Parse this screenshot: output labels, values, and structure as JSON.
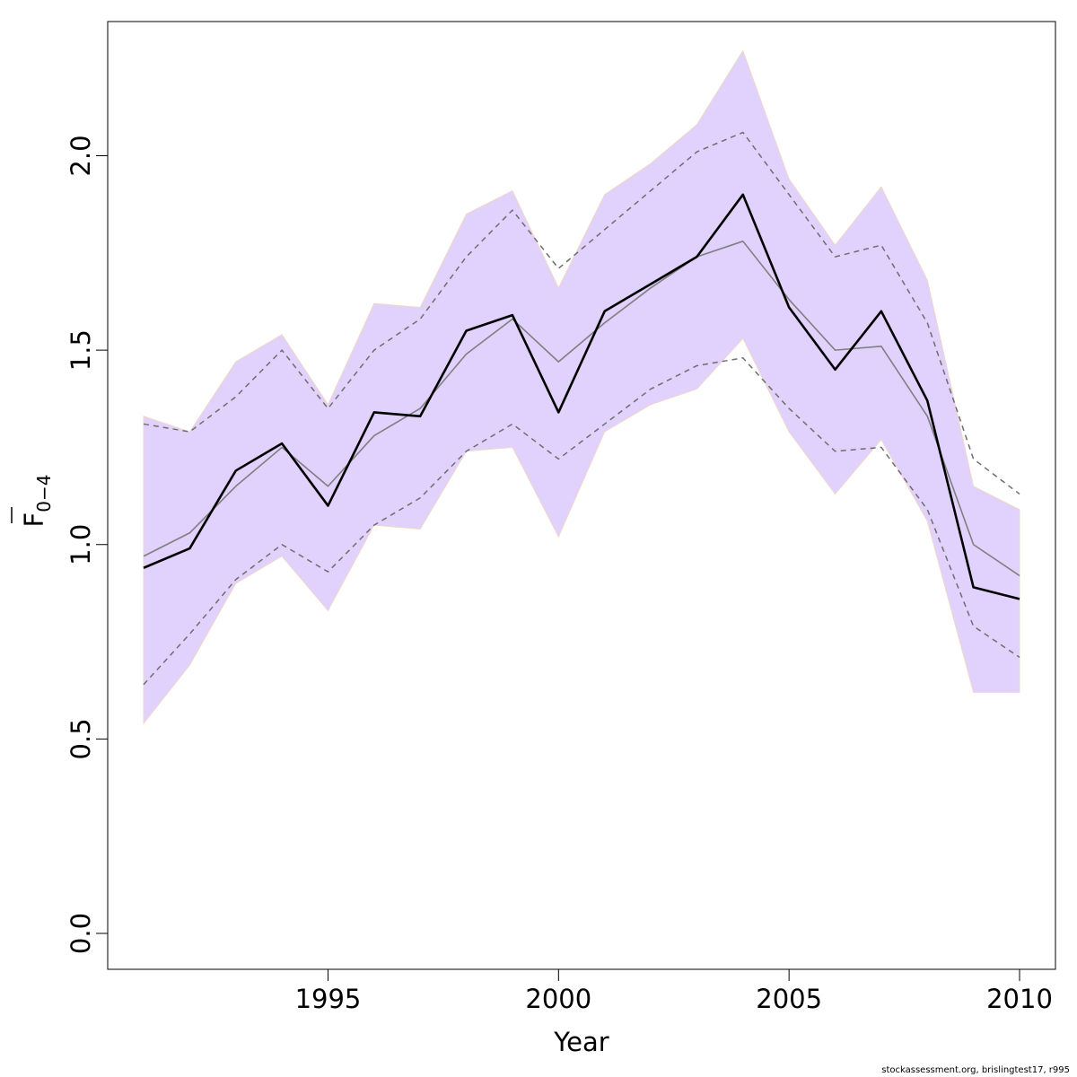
{
  "chart_data": {
    "type": "line",
    "xlabel": "Year",
    "ylabel_main": "F",
    "ylabel_sub": "0−4",
    "xlim": [
      1991,
      2010
    ],
    "ylim": [
      0.0,
      2.25
    ],
    "xticks": [
      1995,
      2000,
      2005,
      2010
    ],
    "yticks": [
      0.0,
      0.5,
      1.0,
      1.5,
      2.0
    ],
    "ytick_labels": [
      "0.0",
      "0.5",
      "1.0",
      "1.5",
      "2.0"
    ],
    "xtick_labels": [
      "1995",
      "2000",
      "2005",
      "2010"
    ],
    "x": [
      1991,
      1992,
      1993,
      1994,
      1995,
      1996,
      1997,
      1998,
      1999,
      2000,
      2001,
      2002,
      2003,
      2004,
      2005,
      2006,
      2007,
      2008,
      2009,
      2010
    ],
    "band_upper": [
      1.33,
      1.29,
      1.47,
      1.54,
      1.36,
      1.62,
      1.61,
      1.85,
      1.91,
      1.66,
      1.9,
      1.98,
      2.08,
      2.27,
      1.94,
      1.77,
      1.92,
      1.68,
      1.15,
      1.09
    ],
    "band_lower": [
      0.54,
      0.69,
      0.9,
      0.97,
      0.83,
      1.05,
      1.04,
      1.24,
      1.25,
      1.02,
      1.29,
      1.36,
      1.4,
      1.53,
      1.29,
      1.13,
      1.27,
      1.06,
      0.62,
      0.62
    ],
    "series": [
      {
        "values": [
          0.94,
          0.99,
          1.19,
          1.26,
          1.1,
          1.34,
          1.33,
          1.55,
          1.59,
          1.34,
          1.6,
          1.67,
          1.74,
          1.9,
          1.61,
          1.45,
          1.6,
          1.37,
          0.89,
          0.86
        ],
        "style": "solid-thick",
        "color": "#000000"
      },
      {
        "values": [
          0.97,
          1.03,
          1.15,
          1.25,
          1.15,
          1.28,
          1.35,
          1.49,
          1.58,
          1.47,
          1.57,
          1.66,
          1.74,
          1.78,
          1.63,
          1.5,
          1.51,
          1.33,
          1.0,
          0.92
        ],
        "style": "solid-thin",
        "color": "#7f7f7f"
      },
      {
        "values": [
          1.31,
          1.29,
          1.38,
          1.5,
          1.35,
          1.5,
          1.58,
          1.74,
          1.86,
          1.71,
          1.81,
          1.91,
          2.01,
          2.06,
          1.9,
          1.74,
          1.77,
          1.57,
          1.22,
          1.13
        ],
        "style": "dashed",
        "color": "#6e6e6e"
      },
      {
        "values": [
          0.64,
          0.77,
          0.91,
          1.0,
          0.93,
          1.05,
          1.12,
          1.24,
          1.31,
          1.22,
          1.31,
          1.4,
          1.46,
          1.48,
          1.35,
          1.24,
          1.25,
          1.09,
          0.79,
          0.71
        ],
        "style": "dashed",
        "color": "#6e6e6e"
      }
    ],
    "band_color": "#e1d1fd",
    "grid": false
  },
  "footer_text": "stockassessment.org, brislingtest17, r995"
}
